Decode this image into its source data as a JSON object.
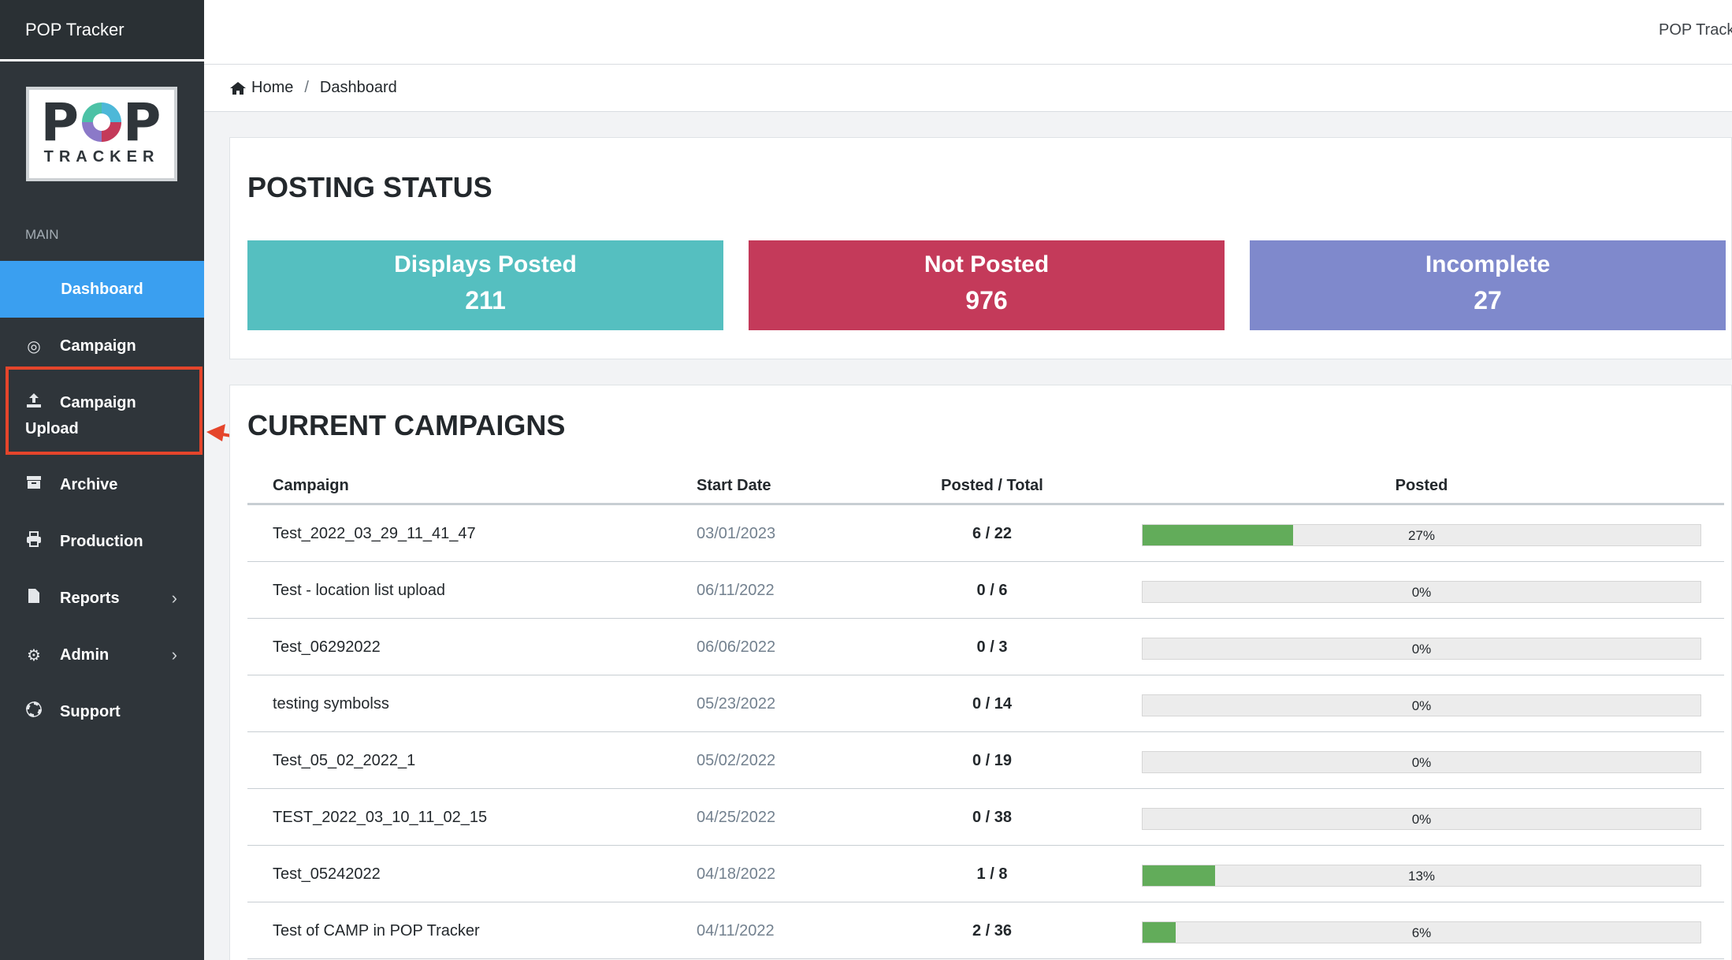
{
  "app": {
    "brand": "POP Tracker",
    "user_label": "POP Tracker"
  },
  "logo": {
    "p1": "P",
    "p2": "P",
    "sub": "TRACKER"
  },
  "sidebar": {
    "section": "MAIN",
    "items": [
      {
        "label": "Dashboard",
        "icon": "none"
      },
      {
        "label": "Campaign",
        "icon": "target-icon"
      },
      {
        "label_line1": "Campaign",
        "label_line2": "Upload",
        "icon": "upload-icon"
      },
      {
        "label": "Archive",
        "icon": "archive-icon"
      },
      {
        "label": "Production",
        "icon": "printer-icon"
      },
      {
        "label": "Reports",
        "icon": "file-icon"
      },
      {
        "label": "Admin",
        "icon": "gear-icon"
      },
      {
        "label": "Support",
        "icon": "lifebuoy-icon"
      }
    ]
  },
  "breadcrumb": {
    "home": "Home",
    "current": "Dashboard"
  },
  "posting_status": {
    "title": "POSTING STATUS",
    "stats": [
      {
        "label": "Displays Posted",
        "value": "211",
        "color": "#55bfc0"
      },
      {
        "label": "Not Posted",
        "value": "976",
        "color": "#c43a5a"
      },
      {
        "label": "Incomplete",
        "value": "27",
        "color": "#7f89cc"
      }
    ]
  },
  "campaigns": {
    "title": "CURRENT CAMPAIGNS",
    "headers": {
      "campaign": "Campaign",
      "start": "Start Date",
      "posted_total": "Posted / Total",
      "posted": "Posted"
    },
    "rows": [
      {
        "name": "Test_2022_03_29_11_41_47",
        "date": "03/01/2023",
        "pt": "6 / 22",
        "pct_label": "27%",
        "pct": 27
      },
      {
        "name": "Test - location list upload",
        "date": "06/11/2022",
        "pt": "0 / 6",
        "pct_label": "0%",
        "pct": 0
      },
      {
        "name": "Test_06292022",
        "date": "06/06/2022",
        "pt": "0 / 3",
        "pct_label": "0%",
        "pct": 0
      },
      {
        "name": "testing symbolss",
        "date": "05/23/2022",
        "pt": "0 / 14",
        "pct_label": "0%",
        "pct": 0
      },
      {
        "name": "Test_05_02_2022_1",
        "date": "05/02/2022",
        "pt": "0 / 19",
        "pct_label": "0%",
        "pct": 0
      },
      {
        "name": "TEST_2022_03_10_11_02_15",
        "date": "04/25/2022",
        "pt": "0 / 38",
        "pct_label": "0%",
        "pct": 0
      },
      {
        "name": "Test_05242022",
        "date": "04/18/2022",
        "pt": "1 / 8",
        "pct_label": "13%",
        "pct": 13
      },
      {
        "name": "Test of CAMP in POP Tracker",
        "date": "04/11/2022",
        "pt": "2 / 36",
        "pct_label": "6%",
        "pct": 6
      }
    ]
  }
}
